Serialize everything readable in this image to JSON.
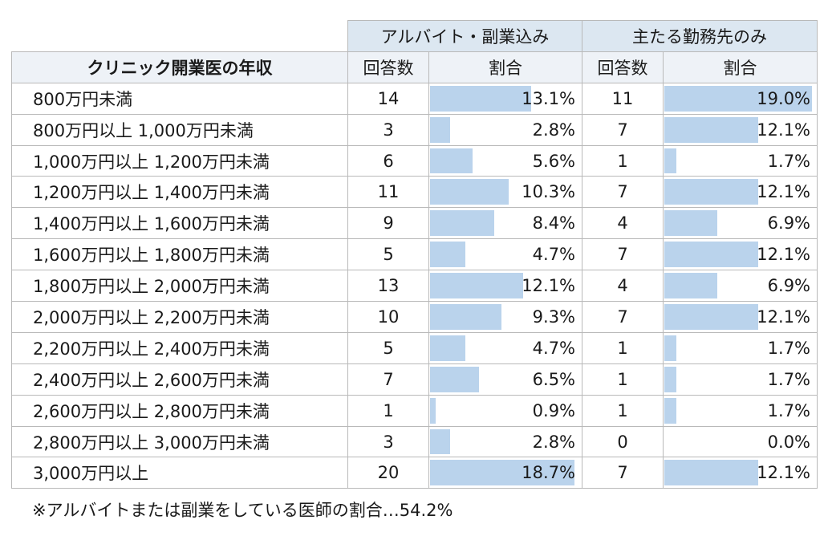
{
  "header": {
    "group1": "アルバイト・副業込み",
    "group2": "主たる勤務先のみ",
    "row_header": "クリニック開業医の年収",
    "count_label": "回答数",
    "ratio_label": "割合"
  },
  "rows": [
    {
      "label": "800万円未満",
      "count1": "14",
      "pct1": "13.1%",
      "count2": "11",
      "pct2": "19.0%"
    },
    {
      "label": "800万円以上 1,000万円未満",
      "count1": "3",
      "pct1": "2.8%",
      "count2": "7",
      "pct2": "12.1%"
    },
    {
      "label": "1,000万円以上 1,200万円未満",
      "count1": "6",
      "pct1": "5.6%",
      "count2": "1",
      "pct2": "1.7%"
    },
    {
      "label": "1,200万円以上 1,400万円未満",
      "count1": "11",
      "pct1": "10.3%",
      "count2": "7",
      "pct2": "12.1%"
    },
    {
      "label": "1,400万円以上 1,600万円未満",
      "count1": "9",
      "pct1": "8.4%",
      "count2": "4",
      "pct2": "6.9%"
    },
    {
      "label": "1,600万円以上 1,800万円未満",
      "count1": "5",
      "pct1": "4.7%",
      "count2": "7",
      "pct2": "12.1%"
    },
    {
      "label": "1,800万円以上 2,000万円未満",
      "count1": "13",
      "pct1": "12.1%",
      "count2": "4",
      "pct2": "6.9%"
    },
    {
      "label": "2,000万円以上 2,200万円未満",
      "count1": "10",
      "pct1": "9.3%",
      "count2": "7",
      "pct2": "12.1%"
    },
    {
      "label": "2,200万円以上 2,400万円未満",
      "count1": "5",
      "pct1": "4.7%",
      "count2": "1",
      "pct2": "1.7%"
    },
    {
      "label": "2,400万円以上 2,600万円未満",
      "count1": "7",
      "pct1": "6.5%",
      "count2": "1",
      "pct2": "1.7%"
    },
    {
      "label": "2,600万円以上 2,800万円未満",
      "count1": "1",
      "pct1": "0.9%",
      "count2": "1",
      "pct2": "1.7%"
    },
    {
      "label": "2,800万円以上 3,000万円未満",
      "count1": "3",
      "pct1": "2.8%",
      "count2": "0",
      "pct2": "0.0%"
    },
    {
      "label": "3,000万円以上",
      "count1": "20",
      "pct1": "18.7%",
      "count2": "7",
      "pct2": "12.1%"
    }
  ],
  "note": "※アルバイトまたは副業をしている医師の割合…54.2%",
  "colors": {
    "bar": "#bad3ec",
    "group_header": "#dce7f1",
    "sub_header": "#eef2f7"
  }
}
